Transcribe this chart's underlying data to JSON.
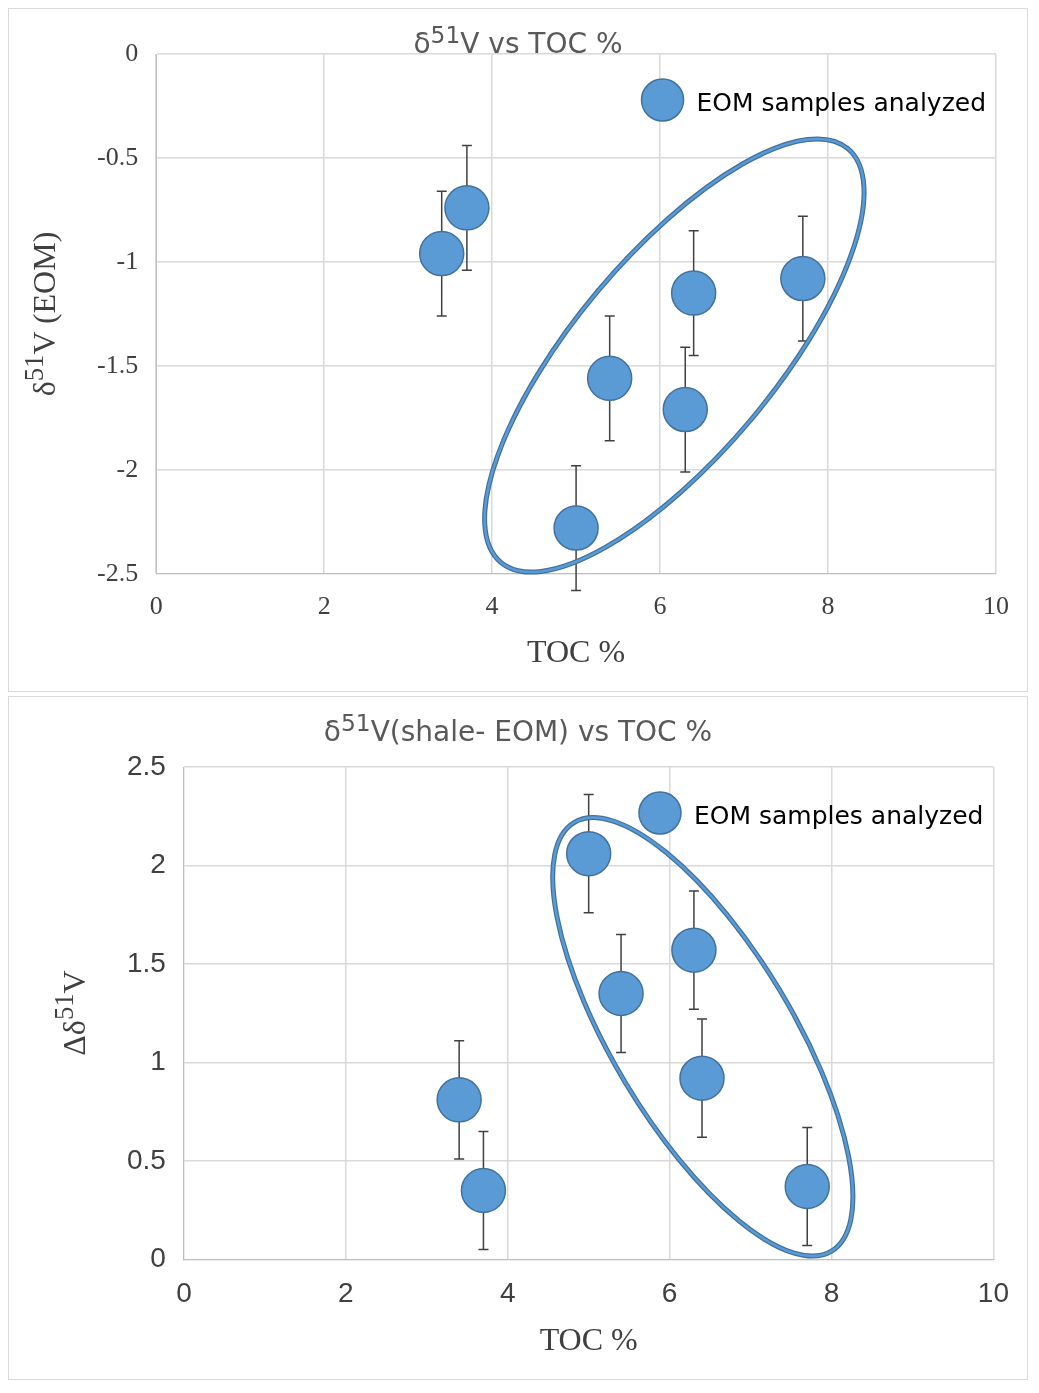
{
  "chart_data": [
    {
      "type": "scatter",
      "title": "δ$^{51}$V vs TOC %",
      "xlabel": "TOC %",
      "ylabel": "δ$^{51}$V (EOM)",
      "xlim": [
        0,
        10
      ],
      "xticks": [
        0,
        2,
        4,
        6,
        8,
        10
      ],
      "ylim": [
        -2.5,
        0
      ],
      "yticks": [
        -2.5,
        -2,
        -1.5,
        -1,
        -0.5,
        0
      ],
      "grid": true,
      "legend": "top right",
      "marker": "circle",
      "series": [
        {
          "name": "EOM samples analyzed",
          "color": "#5b9bd5",
          "x": [
            3.4,
            3.7,
            5.4,
            5.0,
            6.4,
            6.3,
            7.7
          ],
          "values": [
            -0.96,
            -0.74,
            -1.56,
            -2.28,
            -1.15,
            -1.71,
            -1.08
          ],
          "errors": [
            0.3,
            0.3,
            0.3,
            0.3,
            0.3,
            0.3,
            0.3
          ]
        }
      ]
    },
    {
      "type": "scatter",
      "title": "δ$^{51}$V(shale- EOM) vs TOC %",
      "xlabel": "TOC %",
      "ylabel": "Δδ$^{51}$V",
      "xlim": [
        0,
        10
      ],
      "xticks": [
        0,
        2,
        4,
        6,
        8,
        10
      ],
      "ylim": [
        0,
        2.5
      ],
      "yticks": [
        0,
        0.5,
        1,
        1.5,
        2,
        2.5
      ],
      "grid": true,
      "legend": "top right",
      "marker": "circle",
      "series": [
        {
          "name": "EOM samples analyzed",
          "color": "#5b9bd5",
          "x": [
            5.0,
            5.4,
            6.3,
            6.4,
            7.7,
            3.4,
            3.7
          ],
          "values": [
            2.06,
            1.35,
            1.57,
            0.92,
            0.37,
            0.81,
            0.35
          ],
          "errors": [
            0.3,
            0.3,
            0.3,
            0.3,
            0.3,
            0.3,
            0.3
          ]
        }
      ]
    }
  ]
}
